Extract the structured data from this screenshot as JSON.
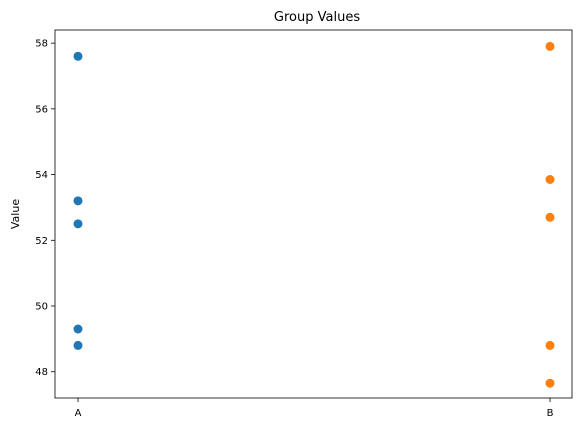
{
  "chart_data": {
    "type": "scatter",
    "title": "Group Values",
    "xlabel": "",
    "ylabel": "Value",
    "categories": [
      "A",
      "B"
    ],
    "ylim": [
      47.2,
      58.4
    ],
    "yticks": [
      48,
      50,
      52,
      54,
      56,
      58
    ],
    "grid": false,
    "series": [
      {
        "category": "A",
        "color": "#1f77b4",
        "values": [
          57.6,
          53.2,
          52.5,
          49.3,
          48.8
        ]
      },
      {
        "category": "B",
        "color": "#ff7f0e",
        "values": [
          57.9,
          53.85,
          52.7,
          48.8,
          47.65
        ]
      }
    ]
  }
}
